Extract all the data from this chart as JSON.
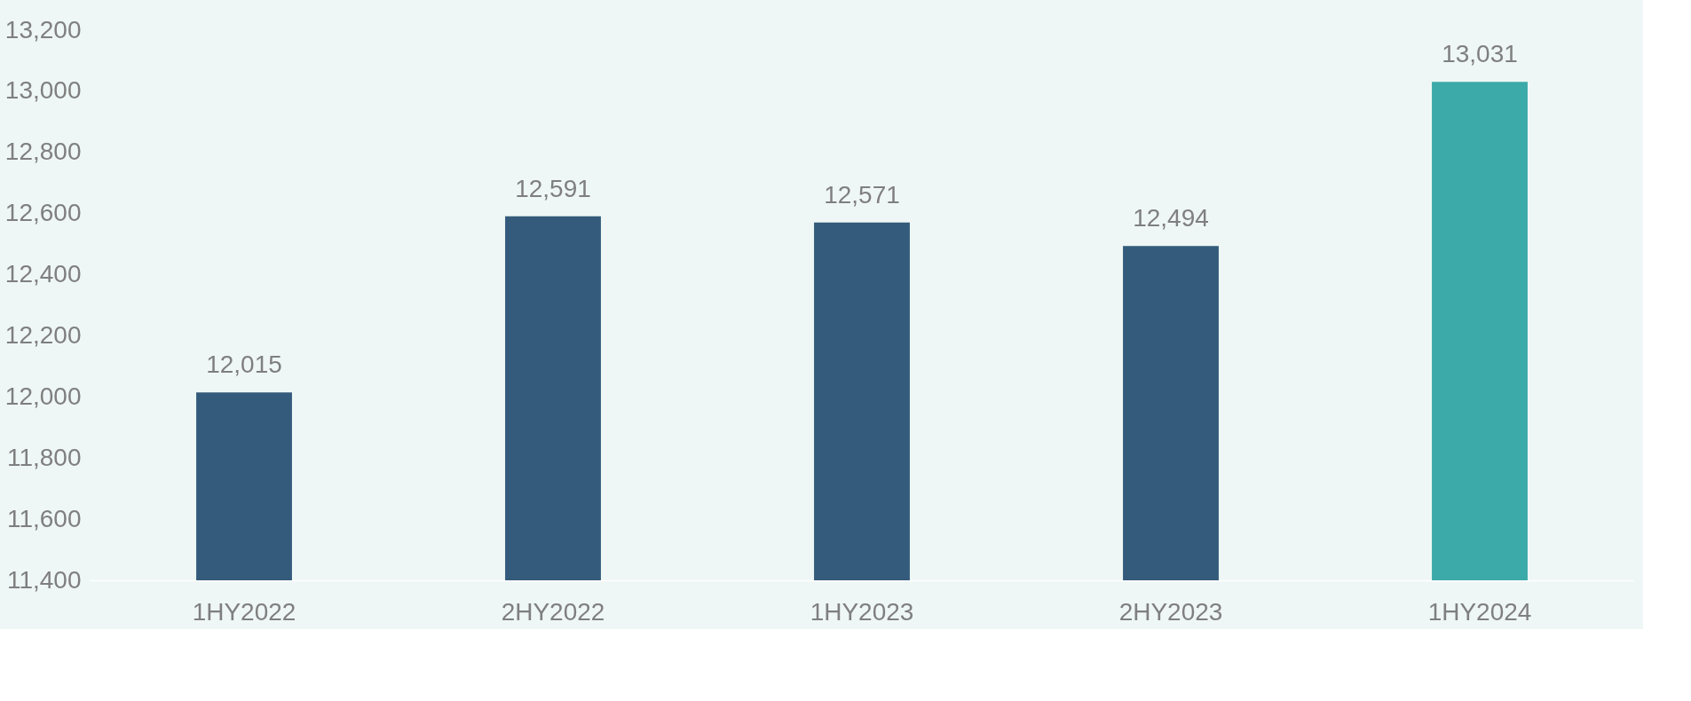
{
  "chart_data": {
    "type": "bar",
    "categories": [
      "1HY2022",
      "2HY2022",
      "1HY2023",
      "2HY2023",
      "1HY2024"
    ],
    "values": [
      12015,
      12591,
      12571,
      12494,
      13031
    ],
    "value_labels": [
      "12,015",
      "12,591",
      "12,571",
      "12,494",
      "13,031"
    ],
    "colors": [
      "#345b7b",
      "#345b7b",
      "#345b7b",
      "#345b7b",
      "#3caaa8"
    ],
    "ylim": [
      11400,
      13200
    ],
    "yticks": [
      {
        "value": 11400,
        "label": "11,400"
      },
      {
        "value": 11600,
        "label": "11,600"
      },
      {
        "value": 11800,
        "label": "11,800"
      },
      {
        "value": 12000,
        "label": "12,000"
      },
      {
        "value": 12200,
        "label": "12,200"
      },
      {
        "value": 12400,
        "label": "12,400"
      },
      {
        "value": 12600,
        "label": "12,600"
      },
      {
        "value": 12800,
        "label": "12,800"
      },
      {
        "value": 13000,
        "label": "13,000"
      },
      {
        "value": 13200,
        "label": "13,200"
      }
    ],
    "grid": false
  }
}
